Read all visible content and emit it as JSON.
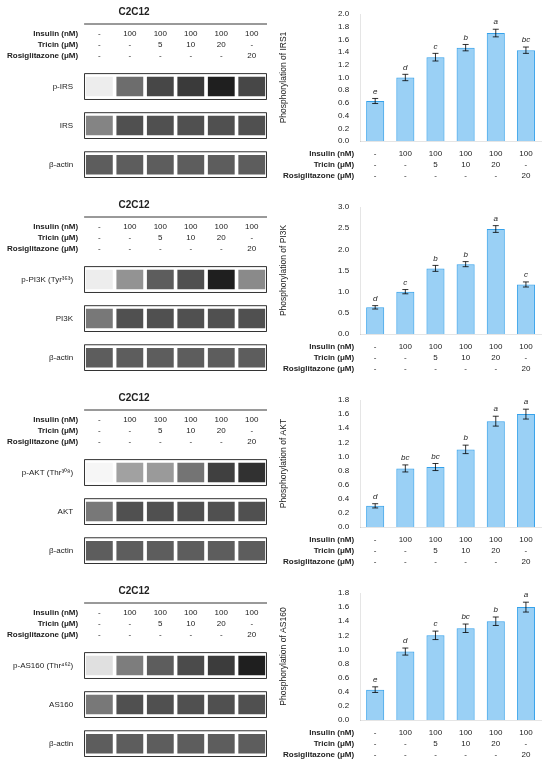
{
  "chart_data": [
    {
      "type": "heatmap",
      "title": "C2C12",
      "categories": [
        [
          "-",
          "-",
          "-"
        ],
        [
          "100",
          "-",
          "-"
        ],
        [
          "100",
          "5",
          "-"
        ],
        [
          "100",
          "10",
          "-"
        ],
        [
          "100",
          "20",
          "-"
        ],
        [
          "100",
          "-",
          "20"
        ]
      ],
      "annotations": [
        "Insulin (nM)",
        "Tricin (μM)",
        "Rosiglitazone (μM)"
      ],
      "y_categories": [
        "p-IRS",
        "IRS",
        "β-actin"
      ],
      "values": [
        [
          0.08,
          0.65,
          0.82,
          0.88,
          1.0,
          0.82
        ],
        [
          0.55,
          0.78,
          0.78,
          0.78,
          0.78,
          0.78
        ],
        [
          0.72,
          0.72,
          0.72,
          0.72,
          0.72,
          0.72
        ]
      ],
      "grid": false
    },
    {
      "type": "bar",
      "ylabel": "Phosphorylation of IRS1",
      "categories": [
        [
          "-",
          "-",
          "-"
        ],
        [
          "100",
          "-",
          "-"
        ],
        [
          "100",
          "5",
          "-"
        ],
        [
          "100",
          "10",
          "-"
        ],
        [
          "100",
          "20",
          "-"
        ],
        [
          "100",
          "-",
          "20"
        ]
      ],
      "annotations": [
        "Insulin (nM)",
        "Tricin (μM)",
        "Rosiglitazone (μM)"
      ],
      "values": [
        0.63,
        1.0,
        1.32,
        1.47,
        1.7,
        1.43
      ],
      "errors": [
        0.04,
        0.05,
        0.06,
        0.05,
        0.06,
        0.05
      ],
      "letters": [
        "e",
        "d",
        "c",
        "b",
        "a",
        "bc"
      ],
      "ylim": [
        0,
        2.0
      ],
      "yticks": [
        {
          "value": 0,
          "label": "0.0"
        },
        0.2,
        0.4,
        0.6,
        0.8,
        {
          "value": 1,
          "label": "1.0"
        },
        1.2,
        1.4,
        1.6,
        1.8,
        {
          "value": 2,
          "label": "2.0"
        }
      ],
      "grid": false
    },
    {
      "type": "heatmap",
      "title": "C2C12",
      "categories": [
        [
          "-",
          "-",
          "-"
        ],
        [
          "100",
          "-",
          "-"
        ],
        [
          "100",
          "5",
          "-"
        ],
        [
          "100",
          "10",
          "-"
        ],
        [
          "100",
          "20",
          "-"
        ],
        [
          "100",
          "-",
          "20"
        ]
      ],
      "annotations": [
        "Insulin (nM)",
        "Tricin (μM)",
        "Rosiglitazone (μM)"
      ],
      "y_categories": [
        "p-PI3K (Tyr³⁵³)",
        "PI3K",
        "β-actin"
      ],
      "values": [
        [
          0.08,
          0.48,
          0.72,
          0.78,
          1.0,
          0.52
        ],
        [
          0.6,
          0.78,
          0.78,
          0.78,
          0.78,
          0.78
        ],
        [
          0.72,
          0.72,
          0.72,
          0.72,
          0.72,
          0.72
        ]
      ],
      "grid": false
    },
    {
      "type": "bar",
      "ylabel": "Phosphorylation of PI3K",
      "categories": [
        [
          "-",
          "-",
          "-"
        ],
        [
          "100",
          "-",
          "-"
        ],
        [
          "100",
          "5",
          "-"
        ],
        [
          "100",
          "10",
          "-"
        ],
        [
          "100",
          "20",
          "-"
        ],
        [
          "100",
          "-",
          "20"
        ]
      ],
      "annotations": [
        "Insulin (nM)",
        "Tricin (μM)",
        "Rosiglitazone (μM)"
      ],
      "values": [
        0.63,
        1.0,
        1.55,
        1.65,
        2.48,
        1.17
      ],
      "errors": [
        0.04,
        0.05,
        0.07,
        0.06,
        0.08,
        0.06
      ],
      "letters": [
        "d",
        "c",
        "b",
        "b",
        "a",
        "c"
      ],
      "ylim": [
        0,
        3.0
      ],
      "yticks": [
        {
          "value": 0,
          "label": "0.0"
        },
        0.5,
        {
          "value": 1,
          "label": "1.0"
        },
        1.5,
        {
          "value": 2,
          "label": "2.0"
        },
        2.5,
        {
          "value": 3,
          "label": "3.0"
        }
      ],
      "grid": false
    },
    {
      "type": "heatmap",
      "title": "C2C12",
      "categories": [
        [
          "-",
          "-",
          "-"
        ],
        [
          "100",
          "-",
          "-"
        ],
        [
          "100",
          "5",
          "-"
        ],
        [
          "100",
          "10",
          "-"
        ],
        [
          "100",
          "20",
          "-"
        ],
        [
          "100",
          "-",
          "20"
        ]
      ],
      "annotations": [
        "Insulin (nM)",
        "Tricin (μM)",
        "Rosiglitazone (μM)"
      ],
      "y_categories": [
        "p-AKT (Thr³⁰⁸)",
        "AKT",
        "β-actin"
      ],
      "values": [
        [
          0.04,
          0.42,
          0.45,
          0.62,
          0.85,
          0.92
        ],
        [
          0.6,
          0.78,
          0.78,
          0.78,
          0.78,
          0.78
        ],
        [
          0.72,
          0.72,
          0.72,
          0.72,
          0.72,
          0.72
        ]
      ],
      "grid": false
    },
    {
      "type": "bar",
      "ylabel": "Phosphorylation of AKT",
      "categories": [
        [
          "-",
          "-",
          "-"
        ],
        [
          "100",
          "-",
          "-"
        ],
        [
          "100",
          "5",
          "-"
        ],
        [
          "100",
          "10",
          "-"
        ],
        [
          "100",
          "20",
          "-"
        ],
        [
          "100",
          "-",
          "20"
        ]
      ],
      "annotations": [
        "Insulin (nM)",
        "Tricin (μM)",
        "Rosiglitazone (μM)"
      ],
      "values": [
        0.3,
        0.83,
        0.85,
        1.1,
        1.5,
        1.6
      ],
      "errors": [
        0.03,
        0.05,
        0.05,
        0.06,
        0.07,
        0.07
      ],
      "letters": [
        "d",
        "bc",
        "bc",
        "b",
        "a",
        "a"
      ],
      "ylim": [
        0,
        1.8
      ],
      "yticks": [
        {
          "value": 0,
          "label": "0.0"
        },
        0.2,
        0.4,
        0.6,
        0.8,
        {
          "value": 1,
          "label": "1.0"
        },
        1.2,
        1.4,
        1.6,
        1.8
      ],
      "grid": false
    },
    {
      "type": "heatmap",
      "title": "C2C12",
      "categories": [
        [
          "-",
          "-",
          "-"
        ],
        [
          "100",
          "-",
          "-"
        ],
        [
          "100",
          "5",
          "-"
        ],
        [
          "100",
          "10",
          "-"
        ],
        [
          "100",
          "20",
          "-"
        ],
        [
          "100",
          "-",
          "20"
        ]
      ],
      "annotations": [
        "Insulin (nM)",
        "Tricin (μM)",
        "Rosiglitazone (μM)"
      ],
      "y_categories": [
        "p-AS160 (Thr⁴⁶²)",
        "AS160",
        "β-actin"
      ],
      "values": [
        [
          0.14,
          0.58,
          0.72,
          0.8,
          0.87,
          1.0
        ],
        [
          0.6,
          0.78,
          0.78,
          0.78,
          0.78,
          0.78
        ],
        [
          0.72,
          0.72,
          0.72,
          0.72,
          0.72,
          0.72
        ]
      ],
      "grid": false
    },
    {
      "type": "bar",
      "ylabel": "Phosphorylation of AS160",
      "categories": [
        [
          "-",
          "-",
          "-"
        ],
        [
          "100",
          "-",
          "-"
        ],
        [
          "100",
          "5",
          "-"
        ],
        [
          "100",
          "10",
          "-"
        ],
        [
          "100",
          "20",
          "-"
        ],
        [
          "100",
          "-",
          "20"
        ]
      ],
      "annotations": [
        "Insulin (nM)",
        "Tricin (μM)",
        "Rosiglitazone (μM)"
      ],
      "values": [
        0.43,
        0.97,
        1.2,
        1.3,
        1.4,
        1.6
      ],
      "errors": [
        0.04,
        0.05,
        0.06,
        0.06,
        0.06,
        0.07
      ],
      "letters": [
        "e",
        "d",
        "c",
        "bc",
        "b",
        "a"
      ],
      "ylim": [
        0,
        1.8
      ],
      "yticks": [
        {
          "value": 0,
          "label": "0.0"
        },
        0.2,
        0.4,
        0.6,
        0.8,
        {
          "value": 1,
          "label": "1.0"
        },
        1.2,
        1.4,
        1.6,
        1.8
      ],
      "grid": false
    }
  ]
}
